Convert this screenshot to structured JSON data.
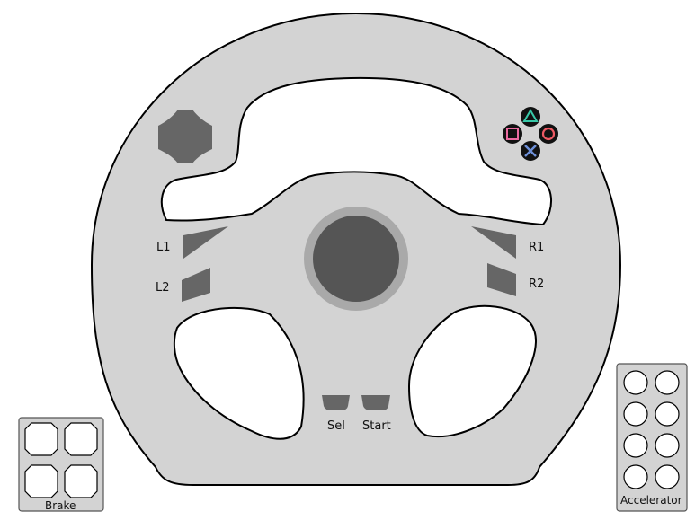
{
  "controller": {
    "buttons": {
      "l1": "L1",
      "l2": "L2",
      "r1": "R1",
      "r2": "R2",
      "select": "Sel",
      "start": "Start"
    },
    "face_buttons": [
      "triangle",
      "circle",
      "cross",
      "square"
    ],
    "face_button_colors": {
      "triangle": "#38c8a8",
      "circle": "#ee5a64",
      "cross": "#6e90d8",
      "square": "#ea6aa0"
    },
    "icons": {
      "dpad": "dpad-icon",
      "face_buttons": [
        "triangle-icon",
        "circle-icon",
        "cross-icon",
        "square-icon"
      ]
    }
  },
  "pedals": {
    "brake": {
      "label": "Brake"
    },
    "accelerator": {
      "label": "Accelerator"
    }
  },
  "colors": {
    "wheel": "#d3d3d3",
    "outline": "#000000",
    "button_fill": "#666666",
    "hub_ring": "#a9a9a9",
    "hub_center": "#555555"
  }
}
